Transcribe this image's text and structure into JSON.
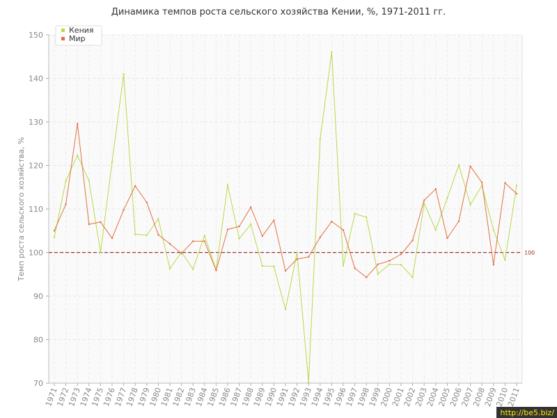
{
  "chart_data": {
    "type": "line",
    "title": "Динамика темпов роста сельского хозяйства Кении, %, 1971-2011 гг.",
    "ylabel": "Темп роста сельского хозяйства, %",
    "xlabel": "",
    "ylim": [
      70,
      150
    ],
    "yticks": [
      70,
      80,
      90,
      100,
      110,
      120,
      130,
      140,
      150
    ],
    "grid": true,
    "legend": "top-left",
    "categories": [
      "1971",
      "1972",
      "1973",
      "1974",
      "1975",
      "1976",
      "1977",
      "1978",
      "1979",
      "1980",
      "1981",
      "1982",
      "1983",
      "1984",
      "1985",
      "1986",
      "1987",
      "1988",
      "1989",
      "1990",
      "1991",
      "1992",
      "1993",
      "1994",
      "1995",
      "1996",
      "1997",
      "1998",
      "1999",
      "2000",
      "2001",
      "2002",
      "2003",
      "2004",
      "2005",
      "2006",
      "2007",
      "2008",
      "2009",
      "2010",
      "2011"
    ],
    "series": [
      {
        "name": "Кения",
        "color": "#b8d94a",
        "values": [
          103.5,
          116.5,
          122.3,
          116.5,
          100.0,
          120.8,
          141.0,
          104.2,
          104.0,
          107.7,
          96.3,
          100.1,
          96.2,
          103.9,
          96.0,
          115.5,
          103.2,
          106.5,
          96.9,
          96.8,
          86.9,
          100.0,
          70.2,
          126.0,
          146.0,
          97.0,
          108.9,
          108.1,
          95.1,
          97.3,
          97.2,
          94.3,
          111.3,
          105.2,
          112.5,
          120.1,
          111.0,
          115.4,
          105.2,
          98.3,
          115.4
        ]
      },
      {
        "name": "Мир",
        "color": "#e07040",
        "values": [
          105.0,
          111.1,
          129.6,
          106.5,
          107.0,
          103.3,
          109.8,
          115.3,
          111.5,
          104.1,
          102.0,
          99.8,
          102.6,
          102.6,
          95.9,
          105.3,
          106.0,
          110.4,
          103.8,
          107.4,
          95.8,
          98.5,
          99.0,
          103.5,
          107.1,
          105.2,
          96.4,
          94.3,
          97.3,
          98.1,
          99.6,
          102.8,
          112.0,
          114.6,
          103.3,
          107.2,
          119.8,
          116.1,
          97.2,
          116.0,
          113.5
        ]
      }
    ],
    "reference_line": {
      "value": 100,
      "label": "100",
      "color": "#993333"
    }
  },
  "watermark": "http://be5.biz/"
}
